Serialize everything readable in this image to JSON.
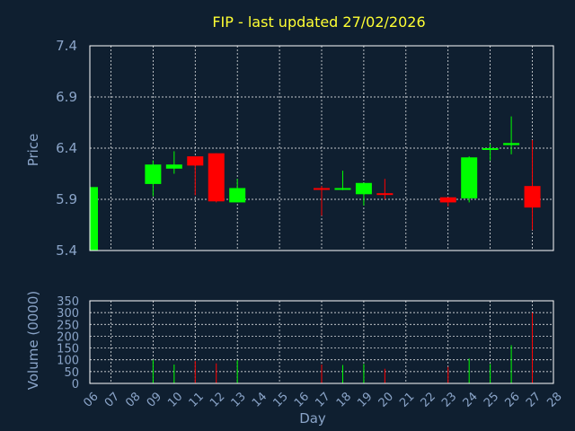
{
  "colors": {
    "background": "#0f1f30",
    "plot_background": "#0f1f30",
    "grid": "#ffffff",
    "axis_text": "#8aa4c8",
    "title": "#ffff33",
    "up": "#00ff00",
    "down": "#ff0000"
  },
  "chart_data": [
    {
      "type": "candlestick",
      "title": "FIP - last updated 27/02/2026",
      "ylabel": "Price",
      "xlabel": "",
      "ylim": [
        5.4,
        7.4
      ],
      "yticks": [
        "7.4",
        "6.9",
        "6.4",
        "5.9",
        "5.4"
      ],
      "ytick_values": [
        7.4,
        6.9,
        6.4,
        5.9,
        5.4
      ],
      "grid": true,
      "candles": [
        {
          "day": "06",
          "open": 5.4,
          "high": 6.02,
          "low": 5.4,
          "close": 6.02
        },
        {
          "day": "09",
          "open": 6.05,
          "high": 6.28,
          "low": 5.93,
          "close": 6.24
        },
        {
          "day": "10",
          "open": 6.2,
          "high": 6.37,
          "low": 6.15,
          "close": 6.24
        },
        {
          "day": "11",
          "open": 6.32,
          "high": 6.32,
          "low": 5.94,
          "close": 6.23
        },
        {
          "day": "12",
          "open": 6.35,
          "high": 6.35,
          "low": 5.87,
          "close": 5.88
        },
        {
          "day": "13",
          "open": 5.87,
          "high": 6.1,
          "low": 5.87,
          "close": 6.01
        },
        {
          "day": "17",
          "open": 6.01,
          "high": 6.03,
          "low": 5.74,
          "close": 6.0
        },
        {
          "day": "18",
          "open": 6.0,
          "high": 6.18,
          "low": 5.99,
          "close": 6.01
        },
        {
          "day": "19",
          "open": 5.95,
          "high": 6.06,
          "low": 5.84,
          "close": 6.06
        },
        {
          "day": "20",
          "open": 5.96,
          "high": 6.1,
          "low": 5.9,
          "close": 5.95
        },
        {
          "day": "23",
          "open": 5.92,
          "high": 5.92,
          "low": 5.83,
          "close": 5.87
        },
        {
          "day": "24",
          "open": 5.91,
          "high": 6.32,
          "low": 5.87,
          "close": 6.31
        },
        {
          "day": "25",
          "open": 6.39,
          "high": 6.44,
          "low": 6.28,
          "close": 6.4
        },
        {
          "day": "26",
          "open": 6.43,
          "high": 6.71,
          "low": 6.34,
          "close": 6.45
        },
        {
          "day": "27",
          "open": 6.03,
          "high": 6.48,
          "low": 5.6,
          "close": 5.82
        }
      ]
    },
    {
      "type": "bar",
      "title": "",
      "ylabel": "Volume (0000)",
      "xlabel": "Day",
      "ylim": [
        0,
        350
      ],
      "yticks": [
        "350",
        "300",
        "250",
        "200",
        "150",
        "100",
        "50",
        "0"
      ],
      "ytick_values": [
        350,
        300,
        250,
        200,
        150,
        100,
        50,
        0
      ],
      "grid": true,
      "categories": [
        "06",
        "07",
        "08",
        "09",
        "10",
        "11",
        "12",
        "13",
        "14",
        "15",
        "16",
        "17",
        "18",
        "19",
        "20",
        "21",
        "22",
        "23",
        "24",
        "25",
        "26",
        "27",
        "28"
      ],
      "volumes": [
        {
          "day": "06",
          "value": 0,
          "direction": "up"
        },
        {
          "day": "09",
          "value": 100,
          "direction": "up"
        },
        {
          "day": "10",
          "value": 80,
          "direction": "up"
        },
        {
          "day": "11",
          "value": 95,
          "direction": "down"
        },
        {
          "day": "12",
          "value": 85,
          "direction": "down"
        },
        {
          "day": "13",
          "value": 98,
          "direction": "up"
        },
        {
          "day": "17",
          "value": 80,
          "direction": "down"
        },
        {
          "day": "18",
          "value": 78,
          "direction": "up"
        },
        {
          "day": "19",
          "value": 82,
          "direction": "up"
        },
        {
          "day": "20",
          "value": 62,
          "direction": "down"
        },
        {
          "day": "23",
          "value": 70,
          "direction": "down"
        },
        {
          "day": "24",
          "value": 105,
          "direction": "up"
        },
        {
          "day": "25",
          "value": 82,
          "direction": "up"
        },
        {
          "day": "26",
          "value": 162,
          "direction": "up"
        },
        {
          "day": "27",
          "value": 300,
          "direction": "down"
        }
      ]
    }
  ]
}
